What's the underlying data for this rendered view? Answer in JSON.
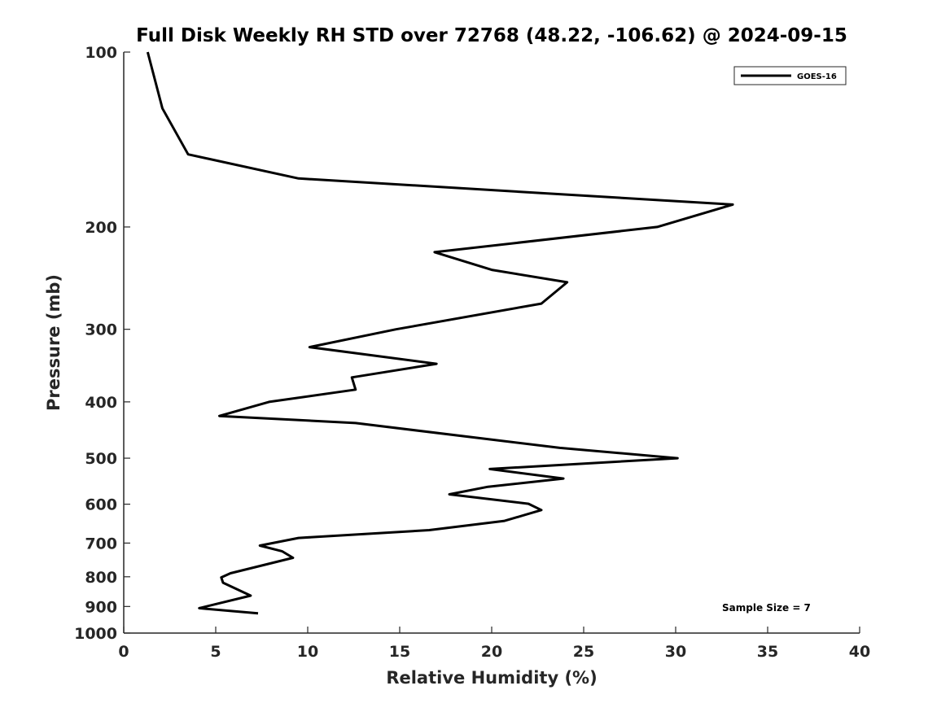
{
  "chart_data": {
    "type": "line",
    "title": "Full Disk Weekly RH STD over 72768 (48.22, -106.62) @ 2024-09-15",
    "xlabel": "Relative Humidity (%)",
    "ylabel": "Pressure (mb)",
    "xlim": [
      0,
      40
    ],
    "ylim": [
      1000,
      100
    ],
    "yscale": "log",
    "grid": false,
    "legend_position": "top-right",
    "xticks": [
      0,
      5,
      10,
      15,
      20,
      25,
      30,
      35,
      40
    ],
    "xtick_labels": [
      "0",
      "5",
      "10",
      "15",
      "20",
      "25",
      "30",
      "35",
      "40"
    ],
    "yticks": [
      100,
      200,
      300,
      400,
      500,
      600,
      700,
      800,
      900,
      1000
    ],
    "ytick_labels": [
      "100",
      "200",
      "300",
      "400",
      "500",
      "600",
      "700",
      "800",
      "900",
      "1000"
    ],
    "series": [
      {
        "name": "GOES-16",
        "color": "#000000",
        "x": [
          1.3,
          2.1,
          3.5,
          9.5,
          33.1,
          29.0,
          16.9,
          20.0,
          24.1,
          22.7,
          14.8,
          10.1,
          17.0,
          12.4,
          12.6,
          7.9,
          5.2,
          12.6,
          23.7,
          30.1,
          19.9,
          23.9,
          19.8,
          17.7,
          22.0,
          22.7,
          20.7,
          16.6,
          9.5,
          7.4,
          8.6,
          9.2,
          5.8,
          5.3,
          5.4,
          6.9,
          4.1,
          7.3
        ],
        "y": [
          100,
          125,
          150,
          165,
          183,
          200,
          221,
          237,
          249,
          271,
          300,
          322,
          344,
          363,
          381,
          400,
          423,
          435,
          480,
          500,
          522,
          542,
          560,
          577,
          599,
          614,
          641,
          665,
          686,
          707,
          723,
          742,
          789,
          802,
          819,
          862,
          906,
          925
        ]
      }
    ],
    "annotations": [
      {
        "text": "Sample Size = 7",
        "x": 33,
        "y": 900
      }
    ]
  }
}
